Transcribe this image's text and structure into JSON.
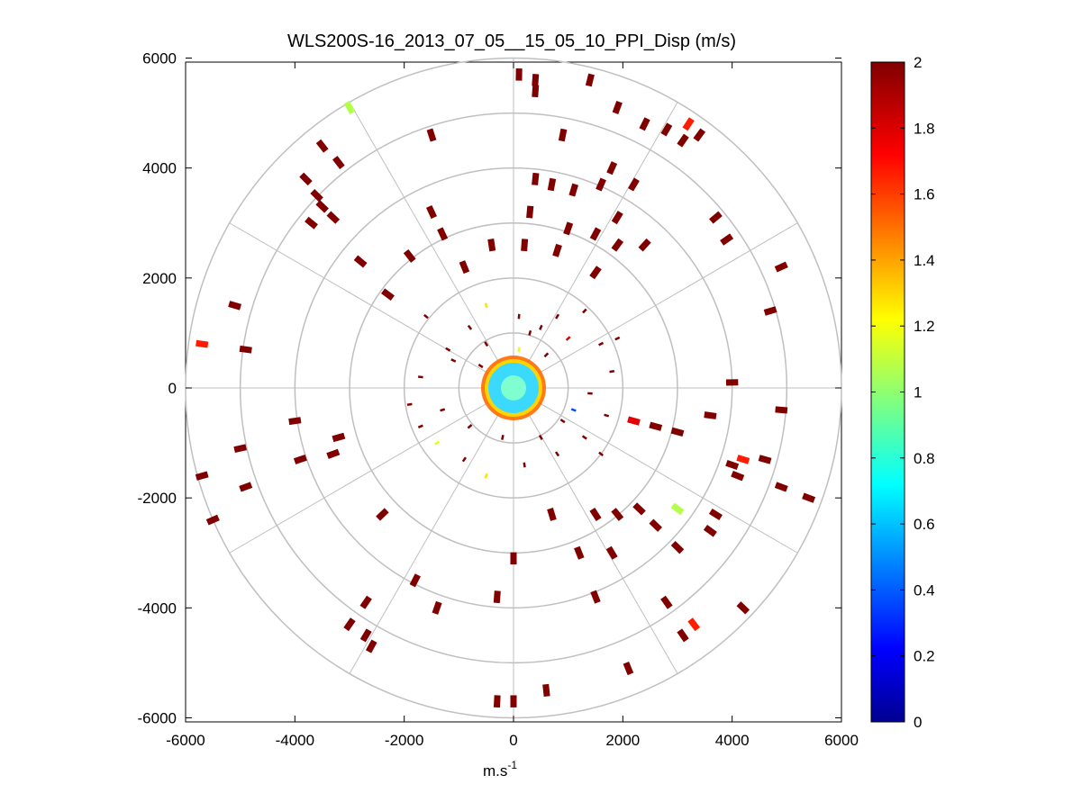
{
  "chart_data": {
    "type": "scatter",
    "subtype": "polar-ppi",
    "title": "WLS200S-16_2013_07_05__15_05_10_PPI_Disp (m/s)",
    "xlabel_base": "m.s",
    "xlabel_exp": "-1",
    "ylabel": "",
    "xlim": [
      -6000,
      6000
    ],
    "ylim": [
      -6000,
      6000
    ],
    "x_ticks": [
      "-6000",
      "-4000",
      "-2000",
      "0",
      "2000",
      "4000",
      "6000"
    ],
    "y_ticks": [
      "6000",
      "4000",
      "2000",
      "0",
      "-2000",
      "-4000",
      "-6000"
    ],
    "x_tick_values": [
      -6000,
      -4000,
      -2000,
      0,
      2000,
      4000,
      6000
    ],
    "y_tick_values": [
      6000,
      4000,
      2000,
      0,
      -2000,
      -4000,
      -6000
    ],
    "polar_rings": [
      1000,
      2000,
      3000,
      4000,
      5000,
      6000
    ],
    "polar_spokes_deg": [
      0,
      30,
      60,
      90,
      120,
      150,
      180,
      210,
      240,
      270,
      300,
      330
    ],
    "colorbar": {
      "min": 0,
      "max": 2,
      "ticks": [
        "2",
        "1.8",
        "1.6",
        "1.4",
        "1.2",
        "1",
        "0.8",
        "0.6",
        "0.4",
        "0.2",
        "0"
      ],
      "tick_values": [
        2,
        1.8,
        1.6,
        1.4,
        1.2,
        1,
        0.8,
        0.6,
        0.4,
        0.2,
        0
      ],
      "colormap": "jet"
    },
    "colors": {
      "grid": "#bfbfbf",
      "axis": "#000000",
      "background": "#ffffff",
      "high": "#800000"
    },
    "points": [
      {
        "x": 100,
        "y": 5700,
        "v": 2
      },
      {
        "x": 400,
        "y": 5600,
        "v": 2
      },
      {
        "x": 1400,
        "y": 5600,
        "v": 2
      },
      {
        "x": 400,
        "y": 5400,
        "v": 2
      },
      {
        "x": 2400,
        "y": 4800,
        "v": 2
      },
      {
        "x": 2800,
        "y": 4700,
        "v": 2
      },
      {
        "x": 3200,
        "y": 4800,
        "v": 1.7
      },
      {
        "x": 3100,
        "y": 4500,
        "v": 2
      },
      {
        "x": 3400,
        "y": 4600,
        "v": 2
      },
      {
        "x": 900,
        "y": 4600,
        "v": 2
      },
      {
        "x": -3000,
        "y": 5100,
        "v": 1.1
      },
      {
        "x": -3500,
        "y": 4400,
        "v": 2
      },
      {
        "x": -3200,
        "y": 4100,
        "v": 2
      },
      {
        "x": -1500,
        "y": 4600,
        "v": 2
      },
      {
        "x": -3800,
        "y": 3800,
        "v": 2
      },
      {
        "x": -3600,
        "y": 3500,
        "v": 2
      },
      {
        "x": -3300,
        "y": 3100,
        "v": 2
      },
      {
        "x": -3700,
        "y": 3000,
        "v": 2
      },
      {
        "x": 1800,
        "y": 4000,
        "v": 2
      },
      {
        "x": 1600,
        "y": 3700,
        "v": 2
      },
      {
        "x": 2200,
        "y": 3700,
        "v": 2
      },
      {
        "x": 700,
        "y": 3700,
        "v": 2
      },
      {
        "x": 1100,
        "y": 3600,
        "v": 2
      },
      {
        "x": 400,
        "y": 3800,
        "v": 2
      },
      {
        "x": 300,
        "y": 3200,
        "v": 2
      },
      {
        "x": 1900,
        "y": 3100,
        "v": 2
      },
      {
        "x": 1500,
        "y": 2800,
        "v": 2
      },
      {
        "x": 1900,
        "y": 2600,
        "v": 2
      },
      {
        "x": 2400,
        "y": 2600,
        "v": 2
      },
      {
        "x": 3700,
        "y": 3100,
        "v": 2
      },
      {
        "x": 3900,
        "y": 2700,
        "v": 2
      },
      {
        "x": -1500,
        "y": 3200,
        "v": 2
      },
      {
        "x": -1300,
        "y": 2800,
        "v": 2
      },
      {
        "x": -400,
        "y": 2600,
        "v": 2
      },
      {
        "x": 200,
        "y": 2600,
        "v": 2
      },
      {
        "x": 800,
        "y": 2500,
        "v": 2
      },
      {
        "x": -2800,
        "y": 2300,
        "v": 2
      },
      {
        "x": -1900,
        "y": 2400,
        "v": 2
      },
      {
        "x": -900,
        "y": 2200,
        "v": 2
      },
      {
        "x": 1500,
        "y": 2100,
        "v": 2
      },
      {
        "x": 4900,
        "y": 2200,
        "v": 2
      },
      {
        "x": -2300,
        "y": 1700,
        "v": 2
      },
      {
        "x": -5100,
        "y": 1500,
        "v": 2
      },
      {
        "x": 4700,
        "y": 1400,
        "v": 2
      },
      {
        "x": -5700,
        "y": 800,
        "v": 1.7
      },
      {
        "x": -4900,
        "y": 700,
        "v": 2
      },
      {
        "x": 4000,
        "y": 100,
        "v": 2
      },
      {
        "x": 3600,
        "y": -500,
        "v": 2
      },
      {
        "x": 2200,
        "y": -600,
        "v": 1.8
      },
      {
        "x": 2600,
        "y": -700,
        "v": 2
      },
      {
        "x": 3000,
        "y": -800,
        "v": 2
      },
      {
        "x": 4900,
        "y": -400,
        "v": 2
      },
      {
        "x": 4200,
        "y": -1300,
        "v": 1.7
      },
      {
        "x": 4600,
        "y": -1300,
        "v": 2
      },
      {
        "x": 4100,
        "y": -1600,
        "v": 2
      },
      {
        "x": 4900,
        "y": -1800,
        "v": 2
      },
      {
        "x": 5400,
        "y": -2000,
        "v": 2
      },
      {
        "x": -4000,
        "y": -600,
        "v": 2
      },
      {
        "x": -3200,
        "y": -900,
        "v": 2
      },
      {
        "x": -5000,
        "y": -1100,
        "v": 2
      },
      {
        "x": -3300,
        "y": -1200,
        "v": 2
      },
      {
        "x": -5700,
        "y": -1600,
        "v": 2
      },
      {
        "x": -4900,
        "y": -1800,
        "v": 2
      },
      {
        "x": -5500,
        "y": -2400,
        "v": 2
      },
      {
        "x": 3000,
        "y": -2200,
        "v": 1.1
      },
      {
        "x": 2600,
        "y": -2500,
        "v": 2
      },
      {
        "x": 3700,
        "y": -2300,
        "v": 2
      },
      {
        "x": 3600,
        "y": -2600,
        "v": 2
      },
      {
        "x": 1900,
        "y": -2300,
        "v": 2
      },
      {
        "x": 2300,
        "y": -2200,
        "v": 2
      },
      {
        "x": 1500,
        "y": -2300,
        "v": 2
      },
      {
        "x": 700,
        "y": -2300,
        "v": 2
      },
      {
        "x": -2400,
        "y": -2300,
        "v": 2
      },
      {
        "x": 3000,
        "y": -2900,
        "v": 2
      },
      {
        "x": 1800,
        "y": -3000,
        "v": 2
      },
      {
        "x": 1200,
        "y": -3000,
        "v": 2
      },
      {
        "x": 0,
        "y": -3100,
        "v": 2
      },
      {
        "x": -1800,
        "y": -3500,
        "v": 2
      },
      {
        "x": -2700,
        "y": -3900,
        "v": 2
      },
      {
        "x": -1400,
        "y": -4000,
        "v": 2
      },
      {
        "x": -300,
        "y": -3800,
        "v": 2
      },
      {
        "x": 1500,
        "y": -3800,
        "v": 2
      },
      {
        "x": 2800,
        "y": -3900,
        "v": 2
      },
      {
        "x": 4200,
        "y": -4000,
        "v": 2
      },
      {
        "x": 3300,
        "y": -4300,
        "v": 1.7
      },
      {
        "x": 3100,
        "y": -4500,
        "v": 2
      },
      {
        "x": -3000,
        "y": -4300,
        "v": 2
      },
      {
        "x": -2700,
        "y": -4500,
        "v": 2
      },
      {
        "x": -2600,
        "y": -4700,
        "v": 2
      },
      {
        "x": 2100,
        "y": -5100,
        "v": 2
      },
      {
        "x": 600,
        "y": -5500,
        "v": 2
      },
      {
        "x": -300,
        "y": -5700,
        "v": 2
      },
      {
        "x": 0,
        "y": -5700,
        "v": 2
      },
      {
        "x": 1900,
        "y": 5100,
        "v": 2
      },
      {
        "x": 1000,
        "y": 2900,
        "v": 2
      },
      {
        "x": -3500,
        "y": 3300,
        "v": 2
      },
      {
        "x": -3900,
        "y": -1300,
        "v": 2
      },
      {
        "x": 4000,
        "y": -1400,
        "v": 2
      }
    ],
    "inner_points": [
      {
        "x": -500,
        "y": 1500,
        "v": 1.3
      },
      {
        "x": 100,
        "y": 1300,
        "v": 2
      },
      {
        "x": 800,
        "y": 1300,
        "v": 2
      },
      {
        "x": 1300,
        "y": 1400,
        "v": 2
      },
      {
        "x": -1600,
        "y": 1300,
        "v": 2
      },
      {
        "x": -800,
        "y": 1100,
        "v": 2
      },
      {
        "x": 300,
        "y": 1000,
        "v": 2
      },
      {
        "x": 1000,
        "y": 900,
        "v": 1.8
      },
      {
        "x": 1600,
        "y": 800,
        "v": 2
      },
      {
        "x": -1200,
        "y": 700,
        "v": 2
      },
      {
        "x": -500,
        "y": 800,
        "v": 2
      },
      {
        "x": 500,
        "y": 1100,
        "v": 2
      },
      {
        "x": 1800,
        "y": 300,
        "v": 2
      },
      {
        "x": 1400,
        "y": -100,
        "v": 2
      },
      {
        "x": 1100,
        "y": -400,
        "v": 0.4
      },
      {
        "x": 1700,
        "y": -500,
        "v": 2
      },
      {
        "x": -1700,
        "y": 200,
        "v": 2
      },
      {
        "x": -1100,
        "y": 500,
        "v": 2
      },
      {
        "x": -1300,
        "y": -400,
        "v": 2
      },
      {
        "x": -1700,
        "y": -700,
        "v": 2
      },
      {
        "x": -1400,
        "y": -1000,
        "v": 1.2
      },
      {
        "x": -900,
        "y": -1300,
        "v": 2
      },
      {
        "x": -500,
        "y": -1600,
        "v": 1.3
      },
      {
        "x": 200,
        "y": -1400,
        "v": 2
      },
      {
        "x": 800,
        "y": -1200,
        "v": 2
      },
      {
        "x": 1300,
        "y": -900,
        "v": 2
      },
      {
        "x": 1600,
        "y": -1200,
        "v": 2
      },
      {
        "x": -200,
        "y": -900,
        "v": 2
      },
      {
        "x": 500,
        "y": -900,
        "v": 2
      },
      {
        "x": 900,
        "y": -600,
        "v": 2
      },
      {
        "x": -800,
        "y": -700,
        "v": 2
      },
      {
        "x": -600,
        "y": 400,
        "v": 2
      },
      {
        "x": 600,
        "y": 600,
        "v": 2
      },
      {
        "x": 100,
        "y": 700,
        "v": 1.2
      },
      {
        "x": 1900,
        "y": 900,
        "v": 2
      },
      {
        "x": -1900,
        "y": -300,
        "v": 2
      }
    ]
  }
}
